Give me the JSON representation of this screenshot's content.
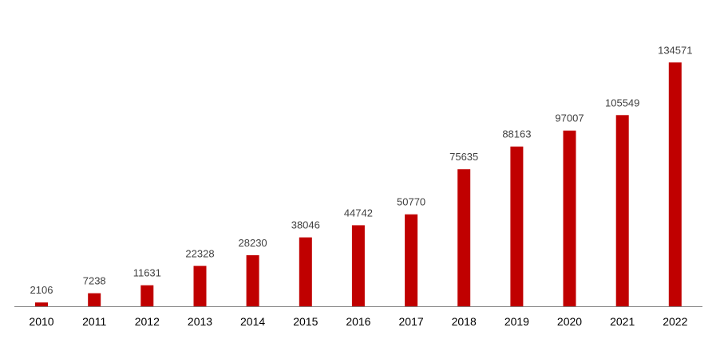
{
  "chart_data": {
    "type": "bar",
    "categories": [
      "2010",
      "2011",
      "2012",
      "2013",
      "2014",
      "2015",
      "2016",
      "2017",
      "2018",
      "2019",
      "2020",
      "2021",
      "2022"
    ],
    "values": [
      2106,
      7238,
      11631,
      22328,
      28230,
      38046,
      44742,
      50770,
      75635,
      88163,
      97007,
      105549,
      134571
    ],
    "title": "",
    "xlabel": "",
    "ylabel": "",
    "ylim": [
      0,
      140000
    ],
    "grid": false,
    "legend": "none",
    "data_labels": true,
    "colors": {
      "bar": "#c00000",
      "axis": "#808080",
      "label": "#404040"
    }
  }
}
